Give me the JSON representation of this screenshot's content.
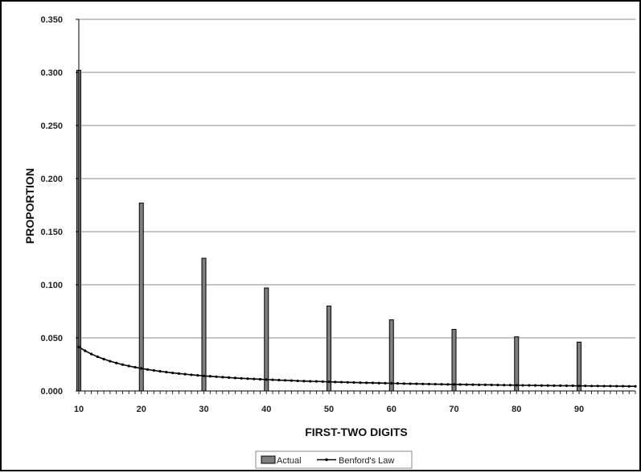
{
  "chart_data": {
    "type": "bar",
    "xlabel": "FIRST-TWO DIGITS",
    "ylabel": "PROPORTION",
    "xlim": [
      10,
      99
    ],
    "ylim": [
      0,
      0.35
    ],
    "y_ticks": [
      "0.000",
      "0.050",
      "0.100",
      "0.150",
      "0.200",
      "0.250",
      "0.300",
      "0.350"
    ],
    "x_ticks": [
      "10",
      "20",
      "30",
      "40",
      "50",
      "60",
      "70",
      "80",
      "90"
    ],
    "grid": true,
    "legend_position": "bottom",
    "series": [
      {
        "name": "Actual",
        "kind": "bar",
        "color": "#7f7f7f",
        "x": [
          10,
          20,
          30,
          40,
          50,
          60,
          70,
          80,
          90
        ],
        "values": [
          0.302,
          0.177,
          0.125,
          0.097,
          0.08,
          0.067,
          0.058,
          0.051,
          0.046
        ]
      },
      {
        "name": "Benford's Law",
        "kind": "line",
        "color": "#000000",
        "x_start": 10,
        "x_end": 99,
        "values": [
          0.0414,
          0.0378,
          0.0348,
          0.0322,
          0.03,
          0.028,
          0.0263,
          0.0248,
          0.0235,
          0.0223,
          0.0212,
          0.0202,
          0.0193,
          0.0185,
          0.0177,
          0.017,
          0.0164,
          0.0158,
          0.0152,
          0.0147,
          0.0142,
          0.0138,
          0.0134,
          0.013,
          0.0126,
          0.0122,
          0.0119,
          0.0116,
          0.0113,
          0.011,
          0.0107,
          0.0105,
          0.0102,
          0.01,
          0.0098,
          0.0095,
          0.0093,
          0.0091,
          0.009,
          0.0088,
          0.0086,
          0.0084,
          0.0083,
          0.0081,
          0.008,
          0.0078,
          0.0077,
          0.0076,
          0.0074,
          0.0073,
          0.0072,
          0.0071,
          0.0069,
          0.0068,
          0.0067,
          0.0066,
          0.0065,
          0.0064,
          0.0063,
          0.0062,
          0.0062,
          0.0061,
          0.006,
          0.0059,
          0.0058,
          0.0058,
          0.0057,
          0.0056,
          0.0055,
          0.0055,
          0.0054,
          0.0053,
          0.0053,
          0.0052,
          0.0051,
          0.0051,
          0.005,
          0.005,
          0.0049,
          0.0049,
          0.0048,
          0.0048,
          0.0047,
          0.0047,
          0.0046,
          0.0046,
          0.0045,
          0.0045,
          0.0044,
          0.0044
        ]
      }
    ]
  }
}
